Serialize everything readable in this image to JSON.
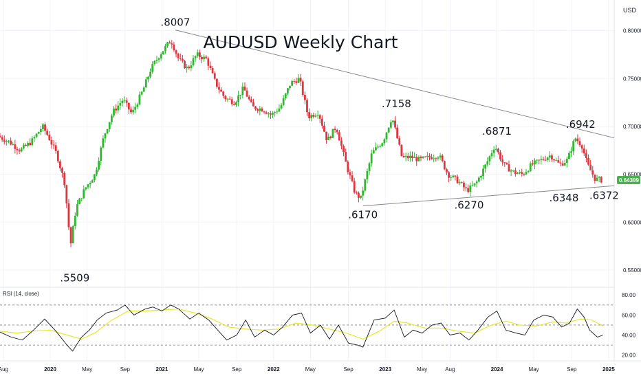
{
  "chart_data": {
    "type": "candlestick",
    "title": "AUDUSD Weekly Chart",
    "currency": "USD",
    "last_price": "0.64399",
    "ylim": [
      0.532,
      0.832
    ],
    "y_ticks": [
      "0.80000",
      "0.75000",
      "0.70000",
      "0.65000",
      "0.60000",
      "0.55000"
    ],
    "y_tick_values": [
      0.8,
      0.75,
      0.7,
      0.65,
      0.6,
      0.55
    ],
    "x_range": [
      2019.55,
      2025.05
    ],
    "x_ticks": [
      {
        "label": "Aug",
        "t": 2019.58,
        "year": false
      },
      {
        "label": "2020",
        "t": 2020.0,
        "year": true
      },
      {
        "label": "May",
        "t": 2020.33,
        "year": false
      },
      {
        "label": "Sep",
        "t": 2020.67,
        "year": false
      },
      {
        "label": "2021",
        "t": 2021.0,
        "year": true
      },
      {
        "label": "May",
        "t": 2021.33,
        "year": false
      },
      {
        "label": "Sep",
        "t": 2021.67,
        "year": false
      },
      {
        "label": "2022",
        "t": 2022.0,
        "year": true
      },
      {
        "label": "May",
        "t": 2022.33,
        "year": false
      },
      {
        "label": "Sep",
        "t": 2022.67,
        "year": false
      },
      {
        "label": "2023",
        "t": 2023.0,
        "year": true
      },
      {
        "label": "May",
        "t": 2023.33,
        "year": false
      },
      {
        "label": "Aug",
        "t": 2023.58,
        "year": false
      },
      {
        "label": "2024",
        "t": 2024.0,
        "year": true
      },
      {
        "label": "May",
        "t": 2024.33,
        "year": false
      },
      {
        "label": "Sep",
        "t": 2024.67,
        "year": false
      },
      {
        "label": "2025",
        "t": 2025.0,
        "year": true
      }
    ],
    "price_path": [
      [
        2019.55,
        0.69
      ],
      [
        2019.65,
        0.684
      ],
      [
        2019.75,
        0.675
      ],
      [
        2019.85,
        0.684
      ],
      [
        2019.95,
        0.7
      ],
      [
        2020.0,
        0.69
      ],
      [
        2020.08,
        0.67
      ],
      [
        2020.15,
        0.64
      ],
      [
        2020.2,
        0.575
      ],
      [
        2020.25,
        0.615
      ],
      [
        2020.33,
        0.635
      ],
      [
        2020.42,
        0.65
      ],
      [
        2020.5,
        0.69
      ],
      [
        2020.58,
        0.715
      ],
      [
        2020.67,
        0.728
      ],
      [
        2020.75,
        0.713
      ],
      [
        2020.85,
        0.738
      ],
      [
        2020.92,
        0.76
      ],
      [
        2021.0,
        0.775
      ],
      [
        2021.1,
        0.79
      ],
      [
        2021.17,
        0.77
      ],
      [
        2021.25,
        0.76
      ],
      [
        2021.33,
        0.775
      ],
      [
        2021.42,
        0.77
      ],
      [
        2021.5,
        0.745
      ],
      [
        2021.58,
        0.73
      ],
      [
        2021.67,
        0.725
      ],
      [
        2021.75,
        0.74
      ],
      [
        2021.83,
        0.72
      ],
      [
        2021.92,
        0.718
      ],
      [
        2022.0,
        0.712
      ],
      [
        2022.08,
        0.72
      ],
      [
        2022.17,
        0.745
      ],
      [
        2022.25,
        0.75
      ],
      [
        2022.33,
        0.71
      ],
      [
        2022.42,
        0.715
      ],
      [
        2022.5,
        0.685
      ],
      [
        2022.58,
        0.7
      ],
      [
        2022.67,
        0.66
      ],
      [
        2022.75,
        0.63
      ],
      [
        2022.8,
        0.625
      ],
      [
        2022.9,
        0.672
      ],
      [
        2023.0,
        0.685
      ],
      [
        2023.08,
        0.71
      ],
      [
        2023.17,
        0.667
      ],
      [
        2023.25,
        0.668
      ],
      [
        2023.33,
        0.665
      ],
      [
        2023.42,
        0.668
      ],
      [
        2023.5,
        0.67
      ],
      [
        2023.58,
        0.65
      ],
      [
        2023.67,
        0.643
      ],
      [
        2023.75,
        0.633
      ],
      [
        2023.83,
        0.64
      ],
      [
        2023.92,
        0.66
      ],
      [
        2024.0,
        0.68
      ],
      [
        2024.08,
        0.66
      ],
      [
        2024.17,
        0.652
      ],
      [
        2024.25,
        0.65
      ],
      [
        2024.33,
        0.66
      ],
      [
        2024.42,
        0.665
      ],
      [
        2024.5,
        0.67
      ],
      [
        2024.58,
        0.66
      ],
      [
        2024.65,
        0.665
      ],
      [
        2024.72,
        0.688
      ],
      [
        2024.78,
        0.68
      ],
      [
        2024.83,
        0.66
      ],
      [
        2024.9,
        0.645
      ],
      [
        2024.95,
        0.644
      ]
    ],
    "rsi": {
      "label": "RSI (14, close)",
      "ylim": [
        15,
        87
      ],
      "y_ticks": [
        "80.00",
        "60.00",
        "40.00",
        "20.00"
      ],
      "y_tick_values": [
        80,
        60,
        40,
        20
      ],
      "bands": [
        70,
        50,
        30
      ],
      "rsi_line": [
        [
          2019.55,
          43
        ],
        [
          2019.65,
          38
        ],
        [
          2019.75,
          35
        ],
        [
          2019.85,
          45
        ],
        [
          2019.95,
          56
        ],
        [
          2020.05,
          44
        ],
        [
          2020.15,
          30
        ],
        [
          2020.2,
          24
        ],
        [
          2020.28,
          38
        ],
        [
          2020.35,
          45
        ],
        [
          2020.42,
          55
        ],
        [
          2020.5,
          62
        ],
        [
          2020.6,
          65
        ],
        [
          2020.67,
          70
        ],
        [
          2020.75,
          60
        ],
        [
          2020.85,
          66
        ],
        [
          2020.92,
          68
        ],
        [
          2021.0,
          64
        ],
        [
          2021.08,
          70
        ],
        [
          2021.15,
          66
        ],
        [
          2021.25,
          56
        ],
        [
          2021.33,
          62
        ],
        [
          2021.42,
          55
        ],
        [
          2021.5,
          45
        ],
        [
          2021.58,
          35
        ],
        [
          2021.67,
          40
        ],
        [
          2021.75,
          55
        ],
        [
          2021.83,
          38
        ],
        [
          2021.92,
          45
        ],
        [
          2022.0,
          40
        ],
        [
          2022.08,
          48
        ],
        [
          2022.17,
          60
        ],
        [
          2022.25,
          62
        ],
        [
          2022.33,
          42
        ],
        [
          2022.42,
          50
        ],
        [
          2022.5,
          36
        ],
        [
          2022.58,
          50
        ],
        [
          2022.67,
          32
        ],
        [
          2022.75,
          30
        ],
        [
          2022.8,
          28
        ],
        [
          2022.9,
          55
        ],
        [
          2023.0,
          57
        ],
        [
          2023.08,
          65
        ],
        [
          2023.17,
          38
        ],
        [
          2023.25,
          45
        ],
        [
          2023.33,
          42
        ],
        [
          2023.42,
          50
        ],
        [
          2023.5,
          52
        ],
        [
          2023.58,
          40
        ],
        [
          2023.67,
          42
        ],
        [
          2023.75,
          35
        ],
        [
          2023.83,
          45
        ],
        [
          2023.92,
          58
        ],
        [
          2024.0,
          64
        ],
        [
          2024.08,
          45
        ],
        [
          2024.17,
          42
        ],
        [
          2024.25,
          40
        ],
        [
          2024.33,
          55
        ],
        [
          2024.42,
          60
        ],
        [
          2024.5,
          58
        ],
        [
          2024.58,
          48
        ],
        [
          2024.65,
          52
        ],
        [
          2024.72,
          66
        ],
        [
          2024.78,
          58
        ],
        [
          2024.83,
          45
        ],
        [
          2024.9,
          38
        ],
        [
          2024.95,
          40
        ]
      ],
      "ma_line": [
        [
          2019.55,
          44
        ],
        [
          2019.7,
          42
        ],
        [
          2019.85,
          44
        ],
        [
          2020.0,
          45
        ],
        [
          2020.15,
          40
        ],
        [
          2020.28,
          36
        ],
        [
          2020.4,
          42
        ],
        [
          2020.55,
          55
        ],
        [
          2020.7,
          64
        ],
        [
          2020.85,
          64
        ],
        [
          2021.0,
          65
        ],
        [
          2021.15,
          66
        ],
        [
          2021.3,
          62
        ],
        [
          2021.45,
          56
        ],
        [
          2021.6,
          48
        ],
        [
          2021.75,
          46
        ],
        [
          2021.9,
          45
        ],
        [
          2022.05,
          46
        ],
        [
          2022.2,
          52
        ],
        [
          2022.35,
          50
        ],
        [
          2022.5,
          46
        ],
        [
          2022.65,
          42
        ],
        [
          2022.8,
          36
        ],
        [
          2022.95,
          44
        ],
        [
          2023.08,
          54
        ],
        [
          2023.2,
          52
        ],
        [
          2023.35,
          47
        ],
        [
          2023.5,
          47
        ],
        [
          2023.65,
          44
        ],
        [
          2023.8,
          42
        ],
        [
          2023.95,
          50
        ],
        [
          2024.08,
          54
        ],
        [
          2024.2,
          50
        ],
        [
          2024.35,
          49
        ],
        [
          2024.5,
          53
        ],
        [
          2024.62,
          52
        ],
        [
          2024.75,
          56
        ],
        [
          2024.85,
          55
        ],
        [
          2024.95,
          49
        ]
      ]
    },
    "annotations": [
      {
        "text": ".8007",
        "t": 2021.12,
        "price": 0.8007,
        "pos": "above"
      },
      {
        "text": ".5509",
        "t": 2020.22,
        "price": 0.5509,
        "pos": "below"
      },
      {
        "text": ".7158",
        "t": 2023.1,
        "price": 0.7158,
        "pos": "above"
      },
      {
        "text": ".6871",
        "t": 2024.0,
        "price": 0.6871,
        "pos": "above"
      },
      {
        "text": ".6942",
        "t": 2024.75,
        "price": 0.6942,
        "pos": "above"
      },
      {
        "text": ".6170",
        "t": 2022.8,
        "price": 0.617,
        "pos": "below"
      },
      {
        "text": ".6270",
        "t": 2023.75,
        "price": 0.627,
        "pos": "below"
      },
      {
        "text": ".6348",
        "t": 2024.6,
        "price": 0.6348,
        "pos": "below"
      },
      {
        "text": ".6372",
        "t": 2024.96,
        "price": 0.6372,
        "pos": "below"
      }
    ],
    "trendlines": [
      {
        "name": "upper-trendline",
        "from": [
          2021.12,
          0.8007
        ],
        "to": [
          2025.05,
          0.688
        ]
      },
      {
        "name": "lower-trendline",
        "from": [
          2022.8,
          0.617
        ],
        "to": [
          2025.05,
          0.638
        ]
      }
    ],
    "colors": {
      "up": "#26a69a",
      "down": "#ef5350",
      "up_candle": "#2eb82e",
      "down_candle": "#e0343f",
      "rsi_line": "#131722",
      "rsi_ma": "#e8e82a",
      "trendline": "#888888",
      "last_price_bg": "#4caf50"
    }
  }
}
